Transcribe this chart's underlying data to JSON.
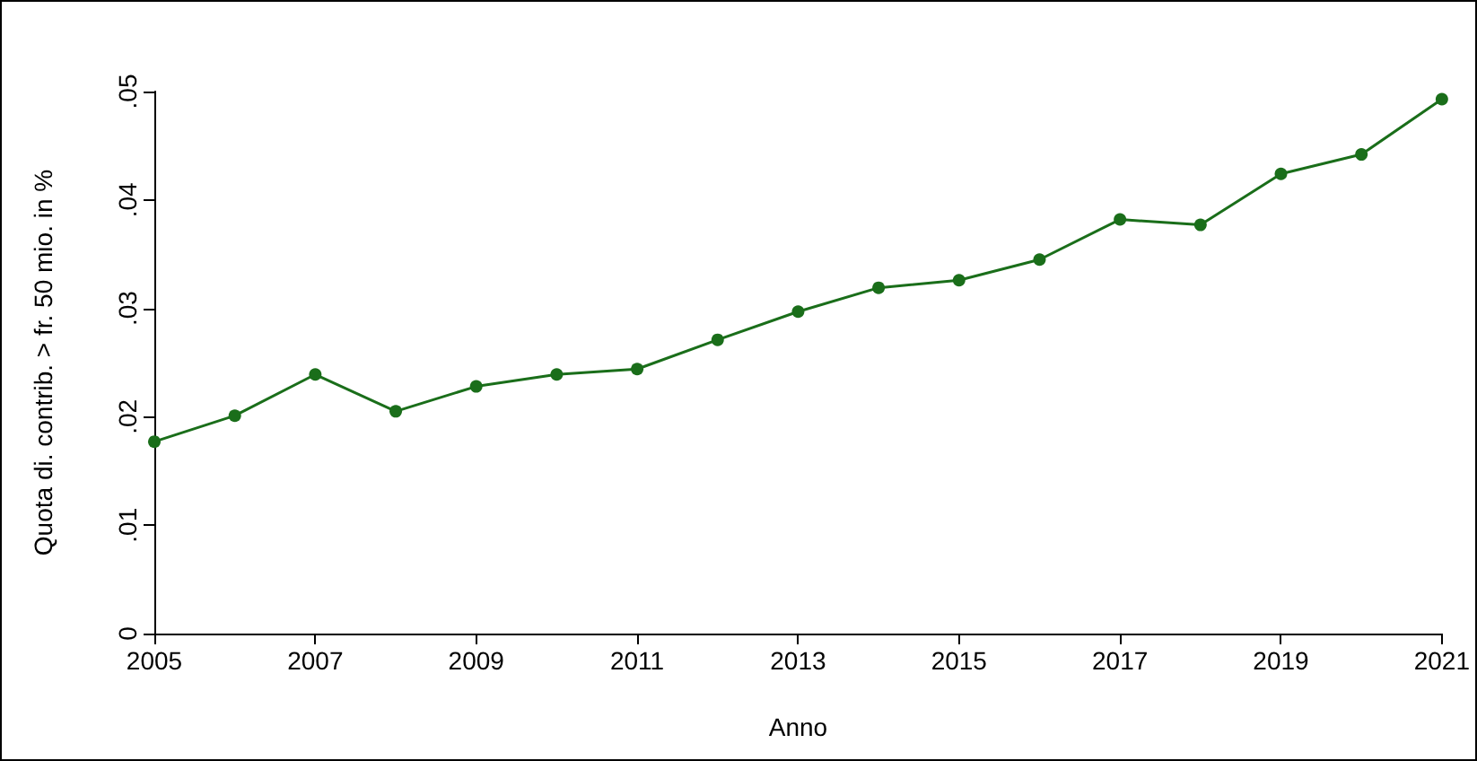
{
  "chart_data": {
    "type": "line",
    "xlabel": "Anno",
    "ylabel": "Quota di. contrib. > fr. 50 mio. in %",
    "x": [
      2005,
      2006,
      2007,
      2008,
      2009,
      2010,
      2011,
      2012,
      2013,
      2014,
      2015,
      2016,
      2017,
      2018,
      2019,
      2020,
      2021
    ],
    "series": [
      {
        "color": "#1a6e1a",
        "values": [
          0.0177,
          0.0201,
          0.0239,
          0.0205,
          0.0228,
          0.0239,
          0.0244,
          0.0271,
          0.0297,
          0.0319,
          0.0326,
          0.0345,
          0.0382,
          0.0377,
          0.0424,
          0.0442,
          0.0493
        ]
      }
    ],
    "xlim": [
      2005,
      2021
    ],
    "xticks": [
      2005,
      2007,
      2009,
      2011,
      2013,
      2015,
      2017,
      2019,
      2021
    ],
    "ylim": [
      0,
      0.05
    ],
    "yticks": [
      {
        "value": 0,
        "label": "0"
      },
      {
        "value": 0.01,
        "label": ".01"
      },
      {
        "value": 0.02,
        "label": ".02"
      },
      {
        "value": 0.03,
        "label": ".03"
      },
      {
        "value": 0.04,
        "label": ".04"
      },
      {
        "value": 0.05,
        "label": ".05"
      }
    ],
    "grid": false,
    "marker": "circle",
    "line_style": "solid"
  }
}
